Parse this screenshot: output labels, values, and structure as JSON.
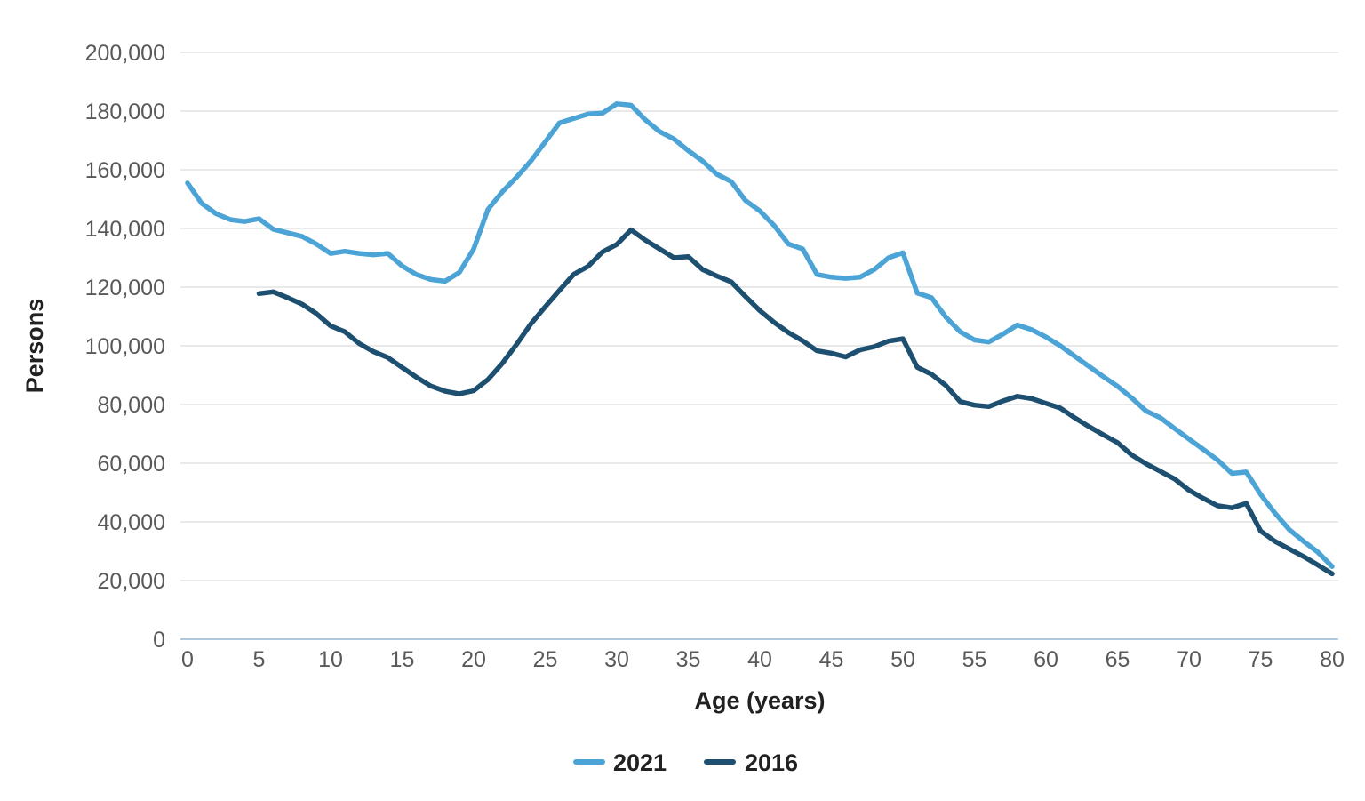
{
  "chart_data": {
    "type": "line",
    "title": "",
    "xlabel": "Age (years)",
    "ylabel": "Persons",
    "xlim": [
      0,
      80
    ],
    "ylim": [
      0,
      200000
    ],
    "x_ticks": [
      0,
      5,
      10,
      15,
      20,
      25,
      30,
      35,
      40,
      45,
      50,
      55,
      60,
      65,
      70,
      75,
      80
    ],
    "y_ticks": [
      0,
      20000,
      40000,
      60000,
      80000,
      100000,
      120000,
      140000,
      160000,
      180000,
      200000
    ],
    "y_tick_labels": [
      "0",
      "20,000",
      "40,000",
      "60,000",
      "80,000",
      "100,000",
      "120,000",
      "140,000",
      "160,000",
      "180,000",
      "200,000"
    ],
    "grid": "horizontal-only",
    "legend_position": "bottom-center",
    "series": [
      {
        "name": "2021",
        "color": "#4ba3d6",
        "x_start": 0,
        "x": [
          0,
          1,
          2,
          3,
          4,
          5,
          6,
          7,
          8,
          9,
          10,
          11,
          12,
          13,
          14,
          15,
          16,
          17,
          18,
          19,
          20,
          21,
          22,
          23,
          24,
          25,
          26,
          27,
          28,
          29,
          30,
          31,
          32,
          33,
          34,
          35,
          36,
          37,
          38,
          39,
          40,
          41,
          42,
          43,
          44,
          45,
          46,
          47,
          48,
          49,
          50,
          51,
          52,
          53,
          54,
          55,
          56,
          57,
          58,
          59,
          60,
          61,
          62,
          63,
          64,
          65,
          66,
          67,
          68,
          69,
          70,
          71,
          72,
          73,
          74,
          75,
          76,
          77,
          78,
          79,
          80
        ],
        "values": [
          155500,
          148500,
          145000,
          143000,
          142400,
          143300,
          139700,
          138500,
          137300,
          134700,
          131500,
          132200,
          131500,
          131000,
          131500,
          127200,
          124300,
          122600,
          122000,
          125000,
          133000,
          146500,
          152500,
          157500,
          163000,
          169500,
          176000,
          177500,
          179000,
          179300,
          182500,
          182000,
          177000,
          173000,
          170500,
          166500,
          163000,
          158500,
          156000,
          149500,
          146000,
          141000,
          134700,
          133000,
          124300,
          123400,
          123000,
          123400,
          126000,
          130000,
          131700,
          118000,
          116400,
          109800,
          104800,
          102000,
          101300,
          104000,
          107100,
          105500,
          103000,
          100000,
          96500,
          93000,
          89500,
          86200,
          82200,
          77800,
          75500,
          71800,
          68200,
          64700,
          61100,
          56500,
          57000,
          49400,
          43000,
          37400,
          33400,
          29700,
          24800
        ]
      },
      {
        "name": "2016",
        "color": "#1d4f70",
        "x_start": 5,
        "x": [
          5,
          6,
          7,
          8,
          9,
          10,
          11,
          12,
          13,
          14,
          15,
          16,
          17,
          18,
          19,
          20,
          21,
          22,
          23,
          24,
          25,
          26,
          27,
          28,
          29,
          30,
          31,
          32,
          33,
          34,
          35,
          36,
          37,
          38,
          39,
          40,
          41,
          42,
          43,
          44,
          45,
          46,
          47,
          48,
          49,
          50,
          51,
          52,
          53,
          54,
          55,
          56,
          57,
          58,
          59,
          60,
          61,
          62,
          63,
          64,
          65,
          66,
          67,
          68,
          69,
          70,
          71,
          72,
          73,
          74,
          75,
          76,
          77,
          78,
          79,
          80
        ],
        "values": [
          117800,
          118400,
          116400,
          114200,
          111000,
          106800,
          104800,
          100800,
          98000,
          96000,
          92600,
          89300,
          86300,
          84500,
          83600,
          84700,
          88500,
          94000,
          100500,
          107500,
          113300,
          118900,
          124400,
          127100,
          132000,
          134500,
          139500,
          136000,
          133000,
          130000,
          130400,
          126000,
          123800,
          121800,
          116800,
          112000,
          108000,
          104500,
          101700,
          98300,
          97500,
          96200,
          98600,
          99700,
          101600,
          102400,
          92700,
          90300,
          86500,
          81000,
          79800,
          79300,
          81200,
          82800,
          82000,
          80400,
          78800,
          75500,
          72500,
          69700,
          67000,
          62800,
          59800,
          57200,
          54600,
          50800,
          48000,
          45500,
          44800,
          46300,
          36900,
          33400,
          30800,
          28200,
          25300,
          22300
        ]
      }
    ]
  },
  "colors": {
    "background": "#ffffff",
    "gridline": "#e2e2e2",
    "zero_axis_line": "#b0c9de",
    "tick_label": "#595959",
    "axis_title": "#212121"
  }
}
